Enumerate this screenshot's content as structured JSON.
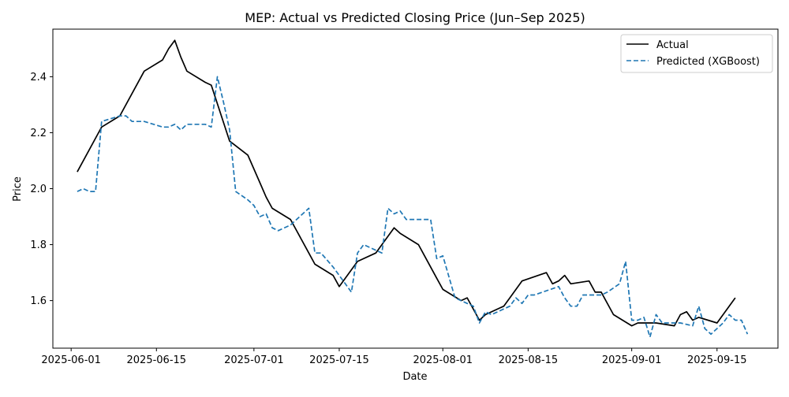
{
  "chart_data": {
    "type": "line",
    "title": "MEP: Actual vs Predicted Closing Price (Jun–Sep 2025)",
    "xlabel": "Date",
    "ylabel": "Price",
    "xlim": [
      "2025-05-29",
      "2025-09-25"
    ],
    "ylim": [
      1.43,
      2.57
    ],
    "x_ticks": [
      "2025-06-01",
      "2025-06-15",
      "2025-07-01",
      "2025-07-15",
      "2025-08-01",
      "2025-08-15",
      "2025-09-01",
      "2025-09-15"
    ],
    "y_ticks": [
      1.6,
      1.8,
      2.0,
      2.2,
      2.4
    ],
    "y_tick_labels": [
      "1.6",
      "1.8",
      "2.0",
      "2.2",
      "2.4"
    ],
    "grid": false,
    "legend": {
      "placement": "top-right"
    },
    "series": [
      {
        "name": "Actual",
        "color": "#000000",
        "style": "solid",
        "points": [
          [
            "2025-06-02",
            2.06
          ],
          [
            "2025-06-06",
            2.22
          ],
          [
            "2025-06-09",
            2.26
          ],
          [
            "2025-06-13",
            2.42
          ],
          [
            "2025-06-16",
            2.46
          ],
          [
            "2025-06-17",
            2.5
          ],
          [
            "2025-06-18",
            2.53
          ],
          [
            "2025-06-19",
            2.47
          ],
          [
            "2025-06-20",
            2.42
          ],
          [
            "2025-06-23",
            2.38
          ],
          [
            "2025-06-24",
            2.37
          ],
          [
            "2025-06-27",
            2.17
          ],
          [
            "2025-06-30",
            2.12
          ],
          [
            "2025-07-02",
            2.02
          ],
          [
            "2025-07-03",
            1.97
          ],
          [
            "2025-07-04",
            1.93
          ],
          [
            "2025-07-07",
            1.89
          ],
          [
            "2025-07-10",
            1.77
          ],
          [
            "2025-07-11",
            1.73
          ],
          [
            "2025-07-14",
            1.69
          ],
          [
            "2025-07-15",
            1.65
          ],
          [
            "2025-07-18",
            1.74
          ],
          [
            "2025-07-21",
            1.77
          ],
          [
            "2025-07-24",
            1.86
          ],
          [
            "2025-07-25",
            1.84
          ],
          [
            "2025-07-28",
            1.8
          ],
          [
            "2025-07-29",
            1.76
          ],
          [
            "2025-07-31",
            1.68
          ],
          [
            "2025-08-01",
            1.64
          ],
          [
            "2025-08-04",
            1.6
          ],
          [
            "2025-08-05",
            1.61
          ],
          [
            "2025-08-07",
            1.53
          ],
          [
            "2025-08-08",
            1.55
          ],
          [
            "2025-08-11",
            1.58
          ],
          [
            "2025-08-12",
            1.61
          ],
          [
            "2025-08-14",
            1.67
          ],
          [
            "2025-08-18",
            1.7
          ],
          [
            "2025-08-19",
            1.66
          ],
          [
            "2025-08-20",
            1.67
          ],
          [
            "2025-08-21",
            1.69
          ],
          [
            "2025-08-22",
            1.66
          ],
          [
            "2025-08-25",
            1.67
          ],
          [
            "2025-08-26",
            1.63
          ],
          [
            "2025-08-27",
            1.63
          ],
          [
            "2025-08-29",
            1.55
          ],
          [
            "2025-09-01",
            1.51
          ],
          [
            "2025-09-02",
            1.52
          ],
          [
            "2025-09-05",
            1.52
          ],
          [
            "2025-09-08",
            1.51
          ],
          [
            "2025-09-09",
            1.55
          ],
          [
            "2025-09-10",
            1.56
          ],
          [
            "2025-09-11",
            1.53
          ],
          [
            "2025-09-12",
            1.54
          ],
          [
            "2025-09-15",
            1.52
          ],
          [
            "2025-09-18",
            1.61
          ]
        ]
      },
      {
        "name": "Predicted (XGBoost)",
        "color": "#1f77b4",
        "style": "dashed",
        "points": [
          [
            "2025-06-02",
            1.99
          ],
          [
            "2025-06-03",
            2.0
          ],
          [
            "2025-06-04",
            1.99
          ],
          [
            "2025-06-05",
            1.99
          ],
          [
            "2025-06-06",
            2.24
          ],
          [
            "2025-06-09",
            2.26
          ],
          [
            "2025-06-10",
            2.26
          ],
          [
            "2025-06-11",
            2.24
          ],
          [
            "2025-06-12",
            2.24
          ],
          [
            "2025-06-13",
            2.24
          ],
          [
            "2025-06-16",
            2.22
          ],
          [
            "2025-06-17",
            2.22
          ],
          [
            "2025-06-18",
            2.23
          ],
          [
            "2025-06-19",
            2.21
          ],
          [
            "2025-06-20",
            2.23
          ],
          [
            "2025-06-23",
            2.23
          ],
          [
            "2025-06-24",
            2.22
          ],
          [
            "2025-06-25",
            2.4
          ],
          [
            "2025-06-26",
            2.31
          ],
          [
            "2025-06-27",
            2.21
          ],
          [
            "2025-06-28",
            1.99
          ],
          [
            "2025-06-30",
            1.96
          ],
          [
            "2025-07-01",
            1.94
          ],
          [
            "2025-07-02",
            1.9
          ],
          [
            "2025-07-03",
            1.91
          ],
          [
            "2025-07-04",
            1.86
          ],
          [
            "2025-07-05",
            1.85
          ],
          [
            "2025-07-07",
            1.87
          ],
          [
            "2025-07-08",
            1.89
          ],
          [
            "2025-07-10",
            1.93
          ],
          [
            "2025-07-11",
            1.77
          ],
          [
            "2025-07-12",
            1.77
          ],
          [
            "2025-07-14",
            1.72
          ],
          [
            "2025-07-16",
            1.66
          ],
          [
            "2025-07-17",
            1.63
          ],
          [
            "2025-07-18",
            1.77
          ],
          [
            "2025-07-19",
            1.8
          ],
          [
            "2025-07-21",
            1.78
          ],
          [
            "2025-07-22",
            1.77
          ],
          [
            "2025-07-23",
            1.93
          ],
          [
            "2025-07-24",
            1.91
          ],
          [
            "2025-07-25",
            1.92
          ],
          [
            "2025-07-26",
            1.89
          ],
          [
            "2025-07-29",
            1.89
          ],
          [
            "2025-07-30",
            1.89
          ],
          [
            "2025-07-31",
            1.75
          ],
          [
            "2025-08-01",
            1.76
          ],
          [
            "2025-08-03",
            1.61
          ],
          [
            "2025-08-05",
            1.59
          ],
          [
            "2025-08-06",
            1.58
          ],
          [
            "2025-08-07",
            1.52
          ],
          [
            "2025-08-08",
            1.56
          ],
          [
            "2025-08-09",
            1.55
          ],
          [
            "2025-08-12",
            1.58
          ],
          [
            "2025-08-13",
            1.61
          ],
          [
            "2025-08-14",
            1.59
          ],
          [
            "2025-08-15",
            1.62
          ],
          [
            "2025-08-16",
            1.62
          ],
          [
            "2025-08-20",
            1.65
          ],
          [
            "2025-08-21",
            1.61
          ],
          [
            "2025-08-22",
            1.58
          ],
          [
            "2025-08-23",
            1.58
          ],
          [
            "2025-08-24",
            1.62
          ],
          [
            "2025-08-27",
            1.62
          ],
          [
            "2025-08-28",
            1.63
          ],
          [
            "2025-08-30",
            1.66
          ],
          [
            "2025-08-31",
            1.74
          ],
          [
            "2025-09-01",
            1.53
          ],
          [
            "2025-09-02",
            1.53
          ],
          [
            "2025-09-03",
            1.54
          ],
          [
            "2025-09-04",
            1.47
          ],
          [
            "2025-09-05",
            1.55
          ],
          [
            "2025-09-06",
            1.52
          ],
          [
            "2025-09-08",
            1.52
          ],
          [
            "2025-09-09",
            1.52
          ],
          [
            "2025-09-11",
            1.51
          ],
          [
            "2025-09-12",
            1.58
          ],
          [
            "2025-09-13",
            1.5
          ],
          [
            "2025-09-14",
            1.48
          ],
          [
            "2025-09-16",
            1.52
          ],
          [
            "2025-09-17",
            1.55
          ],
          [
            "2025-09-18",
            1.53
          ],
          [
            "2025-09-19",
            1.53
          ],
          [
            "2025-09-20",
            1.48
          ]
        ]
      }
    ]
  }
}
